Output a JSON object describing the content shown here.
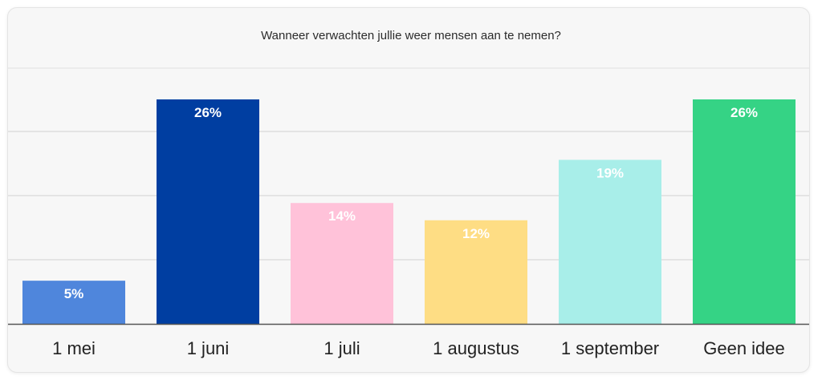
{
  "chart_data": {
    "type": "bar",
    "title": "Wanneer verwachten jullie weer mensen aan te nemen?",
    "categories": [
      "1 mei",
      "1 juni",
      "1 juli",
      "1 augustus",
      "1 september",
      "Geen idee"
    ],
    "values": [
      5,
      26,
      14,
      12,
      19,
      26
    ],
    "value_labels": [
      "5%",
      "26%",
      "14%",
      "12%",
      "19%",
      "26%"
    ],
    "colors": [
      "#4f86dc",
      "#003ea1",
      "#ffc2d9",
      "#fedd84",
      "#a8eee9",
      "#35d385"
    ],
    "ylim": [
      0,
      30
    ],
    "unit": "%",
    "grid": true,
    "legend": "none"
  }
}
